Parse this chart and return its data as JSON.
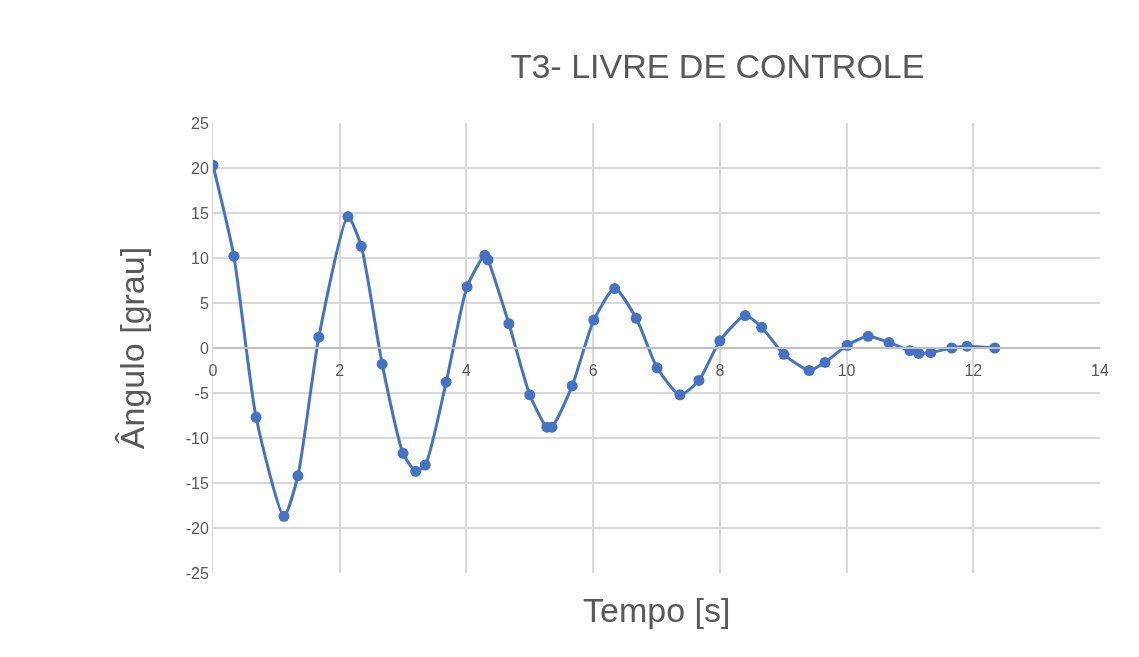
{
  "chart_data": {
    "type": "line",
    "title": "T3- LIVRE DE CONTROLE",
    "xlabel": "Tempo [s]",
    "ylabel": "Ângulo [grau]",
    "x": [
      0,
      0.33,
      0.68,
      1.12,
      1.34,
      1.67,
      2.13,
      2.34,
      2.67,
      3.0,
      3.2,
      3.35,
      3.68,
      4.01,
      4.29,
      4.34,
      4.67,
      5.0,
      5.27,
      5.35,
      5.67,
      6.01,
      6.34,
      6.68,
      7.01,
      7.37,
      7.67,
      8.0,
      8.4,
      8.66,
      9.01,
      9.41,
      9.66,
      10.01,
      10.34,
      10.67,
      11.0,
      11.14,
      11.33,
      11.66,
      11.9,
      12.34
    ],
    "series": [
      {
        "color": "#4472c4",
        "values": [
          20.3,
          10.2,
          -7.7,
          -18.7,
          -14.2,
          1.2,
          14.6,
          11.3,
          -1.8,
          -11.7,
          -13.7,
          -13.0,
          -3.8,
          6.8,
          10.3,
          9.8,
          2.7,
          -5.2,
          -8.8,
          -8.8,
          -4.2,
          3.1,
          6.6,
          3.3,
          -2.2,
          -5.2,
          -3.6,
          0.8,
          3.6,
          2.3,
          -0.7,
          -2.5,
          -1.6,
          0.3,
          1.3,
          0.6,
          -0.3,
          -0.6,
          -0.5,
          0.0,
          0.2,
          0.0
        ]
      }
    ],
    "xlim": [
      0,
      14
    ],
    "xticks": [
      0,
      2,
      4,
      6,
      8,
      10,
      12,
      14
    ],
    "ylim": [
      -25,
      25
    ],
    "yticks": [
      -25,
      -20,
      -15,
      -10,
      -5,
      0,
      5,
      10,
      15,
      20,
      25
    ],
    "grid": true,
    "marker": "circle",
    "line_style": "solid",
    "legend": false
  }
}
